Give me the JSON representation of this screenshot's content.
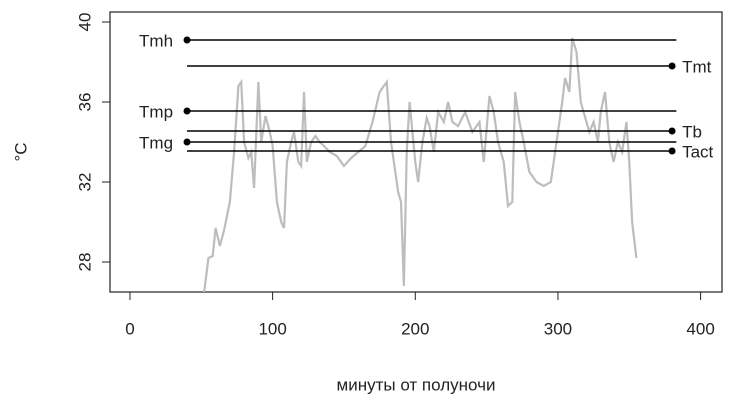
{
  "chart_data": {
    "type": "line",
    "xlabel": "минуты от полуночи",
    "ylabel": "°C",
    "xlim": [
      -14,
      415
    ],
    "ylim": [
      26.5,
      40.5
    ],
    "xticks": [
      0,
      100,
      200,
      300,
      400
    ],
    "yticks": [
      28,
      32,
      36,
      40
    ],
    "grid": false,
    "series": [
      {
        "name": null,
        "color": "#bdbdbd",
        "x": [
          52,
          55,
          58,
          60,
          63,
          66,
          70,
          73,
          76,
          78,
          80,
          83,
          85,
          87,
          90,
          92,
          95,
          98,
          100,
          103,
          106,
          108,
          110,
          113,
          115,
          118,
          120,
          122,
          124,
          127,
          130,
          133,
          136,
          140,
          145,
          150,
          155,
          160,
          165,
          170,
          175,
          180,
          183,
          185,
          188,
          190,
          192,
          194,
          196,
          198,
          200,
          202,
          205,
          208,
          210,
          213,
          216,
          220,
          223,
          226,
          230,
          235,
          240,
          245,
          248,
          252,
          255,
          258,
          262,
          265,
          268,
          270,
          273,
          276,
          280,
          285,
          290,
          295,
          300,
          303,
          305,
          308,
          310,
          313,
          316,
          318,
          322,
          325,
          328,
          330,
          333,
          336,
          339,
          342,
          345,
          348,
          350,
          352,
          355
        ],
        "values": [
          26.5,
          28.2,
          28.3,
          29.7,
          28.8,
          29.6,
          31.0,
          33.5,
          36.8,
          37.0,
          34.0,
          33.2,
          33.5,
          31.7,
          37.0,
          34.0,
          35.3,
          34.5,
          33.8,
          31.0,
          30.0,
          29.7,
          33.0,
          34.0,
          34.5,
          33.0,
          32.8,
          36.5,
          33.0,
          34.0,
          34.3,
          34.0,
          33.8,
          33.5,
          33.3,
          32.8,
          33.2,
          33.5,
          33.8,
          35.0,
          36.5,
          37.0,
          34.0,
          33.0,
          31.5,
          31.0,
          26.8,
          33.5,
          36.0,
          34.5,
          33.0,
          32.0,
          34.0,
          35.2,
          34.8,
          33.5,
          35.5,
          35.0,
          36.0,
          35.0,
          34.8,
          35.5,
          34.5,
          35.0,
          33.0,
          36.3,
          35.5,
          34.0,
          33.0,
          30.8,
          31.0,
          36.5,
          35.0,
          34.0,
          32.5,
          32.0,
          31.8,
          32.0,
          34.5,
          36.0,
          37.2,
          36.5,
          39.2,
          38.5,
          36.0,
          35.5,
          34.5,
          35.0,
          34.0,
          35.5,
          36.5,
          34.0,
          33.0,
          34.0,
          33.5,
          35.0,
          33.0,
          30.0,
          28.2
        ]
      }
    ],
    "reference_lines": [
      {
        "name": "Tmh",
        "value": 39.1,
        "x": [
          40,
          383
        ],
        "dot": "left",
        "color": "#000000"
      },
      {
        "name": "Tmt",
        "value": 37.8,
        "x": [
          40,
          380
        ],
        "dot": "right",
        "color": "#000000"
      },
      {
        "name": "Tmp",
        "value": 35.55,
        "x": [
          40,
          383
        ],
        "dot": "left",
        "color": "#000000"
      },
      {
        "name": "Tb",
        "value": 34.55,
        "x": [
          40,
          380
        ],
        "dot": "right",
        "color": "#000000"
      },
      {
        "name": "Tmg",
        "value": 34.0,
        "x": [
          40,
          383
        ],
        "dot": "left",
        "color": "#000000"
      },
      {
        "name": "Tact",
        "value": 33.55,
        "x": [
          40,
          380
        ],
        "dot": "right",
        "color": "#000000"
      }
    ]
  }
}
